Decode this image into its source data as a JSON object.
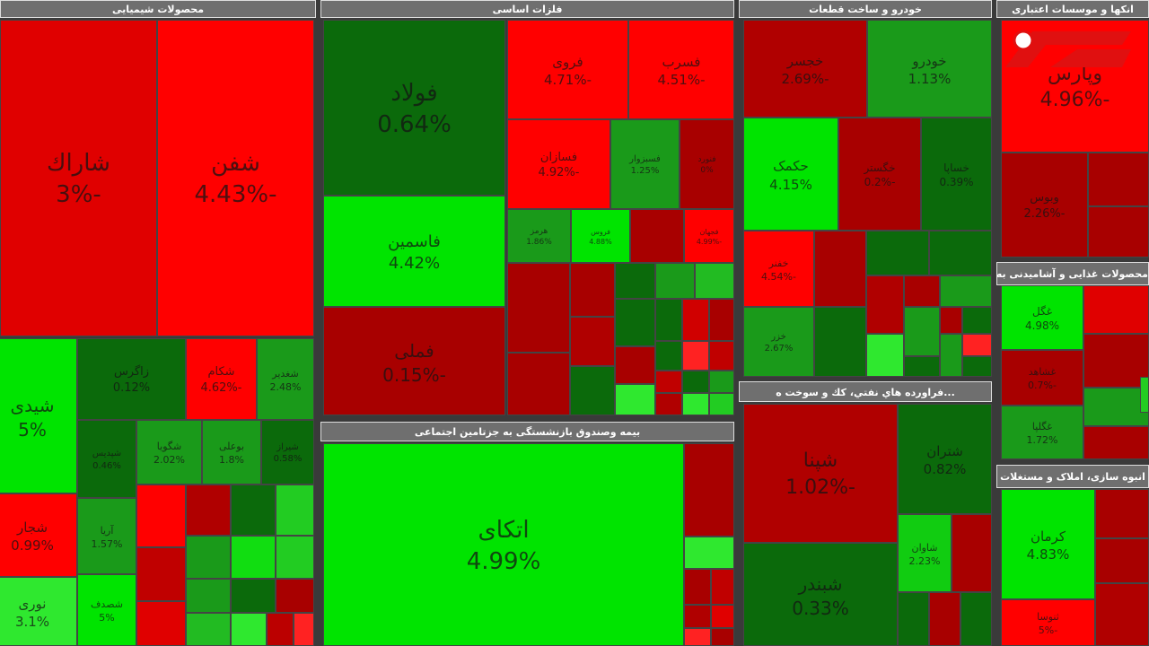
{
  "panels": [
    {
      "title": "محصولات شیمیایی",
      "tiles": [
        {
          "name": "شاراك",
          "change": "-3%"
        },
        {
          "name": "شفن",
          "change": "-4.43%"
        },
        {
          "name": "شیدی",
          "change": "5%"
        },
        {
          "name": "زاگرس",
          "change": "0.12%"
        },
        {
          "name": "شکام",
          "change": "-4.62%"
        },
        {
          "name": "شغدیر",
          "change": "2.48%"
        },
        {
          "name": "شپدیس",
          "change": "0.46%"
        },
        {
          "name": "شگویا",
          "change": "2.02%"
        },
        {
          "name": "بوعلی",
          "change": "1.8%"
        },
        {
          "name": "شیراز",
          "change": "0.58%"
        },
        {
          "name": "شجار",
          "change": "0.99%"
        },
        {
          "name": "آریا",
          "change": "1.57%"
        },
        {
          "name": "نوری",
          "change": "3.1%"
        },
        {
          "name": "شصدف",
          "change": "5%"
        }
      ]
    },
    {
      "title": "فلزات اساسی",
      "tiles": [
        {
          "name": "فولاد",
          "change": "0.64%"
        },
        {
          "name": "فاسمین",
          "change": "4.42%"
        },
        {
          "name": "فملی",
          "change": "-0.15%"
        },
        {
          "name": "فروی",
          "change": "-4.71%"
        },
        {
          "name": "فسرب",
          "change": "-4.51%"
        },
        {
          "name": "فسازان",
          "change": "-4.92%"
        },
        {
          "name": "فسبزوار",
          "change": "1.25%"
        },
        {
          "name": "فنورد",
          "change": "0%"
        },
        {
          "name": "هرمز",
          "change": "1.86%"
        },
        {
          "name": "فروس",
          "change": "4.88%"
        },
        {
          "name": "فجهان",
          "change": "-4.99%"
        }
      ]
    },
    {
      "title": "بیمه وصندوق بازنشستگی به جزتامین اجتماعی",
      "tiles": [
        {
          "name": "اتکای",
          "change": "4.99%"
        }
      ]
    },
    {
      "title": "خودرو و ساخت قطعات",
      "tiles": [
        {
          "name": "خجسر",
          "change": "-2.69%"
        },
        {
          "name": "خودرو",
          "change": "1.13%"
        },
        {
          "name": "حکمک",
          "change": "4.15%"
        },
        {
          "name": "خگستر",
          "change": "-0.2%"
        },
        {
          "name": "خساپا",
          "change": "0.39%"
        },
        {
          "name": "خفنر",
          "change": "-4.54%"
        },
        {
          "name": "خزر",
          "change": "2.67%"
        }
      ]
    },
    {
      "title": "...فراورده هاي نفتي، كك و سوخت ه",
      "tiles": [
        {
          "name": "شپنا",
          "change": "-1.02%"
        },
        {
          "name": "شتران",
          "change": "0.82%"
        },
        {
          "name": "شاوان",
          "change": "2.23%"
        },
        {
          "name": "شبندر",
          "change": "0.33%"
        }
      ]
    },
    {
      "title": "انکها و موسسات اعتباری",
      "tiles": [
        {
          "name": "وپارس",
          "change": "-4.96%"
        },
        {
          "name": "وبوس",
          "change": "-2.26%"
        }
      ]
    },
    {
      "title": "محصولات غذایی و آشامیدنی به",
      "tiles": [
        {
          "name": "غگل",
          "change": "4.98%"
        },
        {
          "name": "غشاهد",
          "change": "-0.7%"
        },
        {
          "name": "غگلپا",
          "change": "1.72%"
        }
      ]
    },
    {
      "title": "انبوه سازی، املاک و مستغلات",
      "tiles": [
        {
          "name": "کرمان",
          "change": "4.83%"
        },
        {
          "name": "ثنوسا",
          "change": "-5%"
        }
      ]
    }
  ]
}
